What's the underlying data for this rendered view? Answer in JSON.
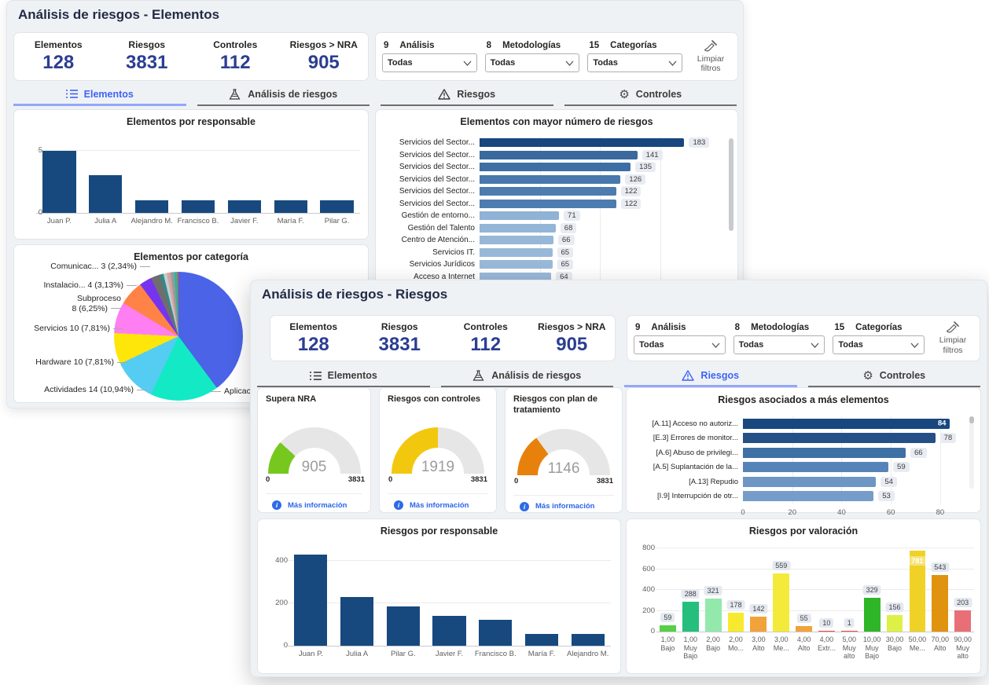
{
  "back": {
    "title": "Análisis de riesgos - Elementos",
    "kpis": [
      {
        "label": "Elementos",
        "value": "128"
      },
      {
        "label": "Riesgos",
        "value": "3831"
      },
      {
        "label": "Controles",
        "value": "112"
      },
      {
        "label": "Riesgos > NRA",
        "value": "905"
      }
    ],
    "filters": {
      "groups": [
        {
          "count": "9",
          "label": "Análisis",
          "value": "Todas"
        },
        {
          "count": "8",
          "label": "Metodologías",
          "value": "Todas"
        },
        {
          "count": "15",
          "label": "Categorías",
          "value": "Todas"
        }
      ],
      "clear_label": "Limpiar filtros"
    },
    "tabs": [
      {
        "label": "Elementos",
        "icon": "list",
        "active": true
      },
      {
        "label": "Análisis de riesgos",
        "icon": "flask",
        "active": false
      },
      {
        "label": "Riesgos",
        "icon": "warning",
        "active": false
      },
      {
        "label": "Controles",
        "icon": "gear",
        "active": false
      }
    ],
    "chart_responsable": {
      "type": "bar",
      "title": "Elementos por responsable",
      "categories": [
        "Juan P.",
        "Julia A",
        "Alejandro M.",
        "Francisco B.",
        "Javier F.",
        "María F.",
        "Pilar G."
      ],
      "values": [
        5,
        3,
        1,
        1,
        1,
        1,
        1
      ],
      "yticks": [
        0,
        5
      ],
      "scale_max": 6.25,
      "bar_color": "#17497F"
    },
    "chart_mayor": {
      "type": "bar-horizontal",
      "title": "Elementos con mayor número de riesgos",
      "scale_max": 215,
      "items": [
        {
          "label": "Servicios del Sector...",
          "value": 183,
          "color": "#17477E"
        },
        {
          "label": "Servicios del Sector...",
          "value": 141,
          "color": "#39699F"
        },
        {
          "label": "Servicios del Sector...",
          "value": 135,
          "color": "#3E6FA4"
        },
        {
          "label": "Servicios del Sector...",
          "value": 126,
          "color": "#4878AC"
        },
        {
          "label": "Servicios del Sector...",
          "value": 122,
          "color": "#4C7CB0"
        },
        {
          "label": "Servicios del Sector...",
          "value": 122,
          "color": "#4C7CB0"
        },
        {
          "label": "Gestión de entorno...",
          "value": 71,
          "color": "#8FB2D5"
        },
        {
          "label": "Gestión del Talento",
          "value": 68,
          "color": "#93B5D7"
        },
        {
          "label": "Centro de Atención...",
          "value": 66,
          "color": "#96B7D8"
        },
        {
          "label": "Servicios IT.",
          "value": 65,
          "color": "#98B8D9"
        },
        {
          "label": "Servicios Jurídicos",
          "value": 65,
          "color": "#98B8D9"
        },
        {
          "label": "Acceso a Internet",
          "value": 64,
          "color": "#99B9D9"
        }
      ]
    },
    "chart_categoria": {
      "type": "pie",
      "title": "Elementos por categoría",
      "slices": [
        {
          "pct": 39.84,
          "color": "#4A63E7"
        },
        {
          "pct": 17.19,
          "color": "#14E9C5"
        },
        {
          "pct": 10.94,
          "color": "#55CCF2"
        },
        {
          "pct": 7.81,
          "color": "#FFE60A"
        },
        {
          "pct": 7.81,
          "color": "#FF7EF2"
        },
        {
          "pct": 6.25,
          "color": "#FF8346"
        },
        {
          "pct": 3.13,
          "color": "#7633F0"
        },
        {
          "pct": 2.34,
          "color": "#6E6E6E"
        },
        {
          "pct": 0.9,
          "color": "#2E8B8B"
        },
        {
          "pct": 0.9,
          "color": "#C7CDCD"
        },
        {
          "pct": 0.9,
          "color": "#D4A3A3"
        },
        {
          "pct": 0.9,
          "color": "#9A9A9A"
        },
        {
          "pct": 0.8,
          "color": "#27B8A0"
        },
        {
          "pct": 0.4,
          "color": "#E8503C"
        },
        {
          "pct": 0.39,
          "color": "#E8C43C"
        }
      ],
      "callouts": [
        {
          "text": "Comunicac... 3 (2,34%)"
        },
        {
          "text": "Instalacio... 4 (3,13%)"
        },
        {
          "text": "Subproceso\n8 (6,25%)"
        },
        {
          "text": "Servicios 10 (7,81%)"
        },
        {
          "text": "Hardware 10 (7,81%)"
        },
        {
          "text": "Actividades 14 (10,94%)"
        },
        {
          "text": "Aplicac..."
        }
      ]
    }
  },
  "front": {
    "title": "Análisis de riesgos - Riesgos",
    "kpis": [
      {
        "label": "Elementos",
        "value": "128"
      },
      {
        "label": "Riesgos",
        "value": "3831"
      },
      {
        "label": "Controles",
        "value": "112"
      },
      {
        "label": "Riesgos > NRA",
        "value": "905"
      }
    ],
    "filters": {
      "groups": [
        {
          "count": "9",
          "label": "Análisis",
          "value": "Todas"
        },
        {
          "count": "8",
          "label": "Metodologías",
          "value": "Todas"
        },
        {
          "count": "15",
          "label": "Categorías",
          "value": "Todas"
        }
      ],
      "clear_label": "Limpiar filtros"
    },
    "tabs": [
      {
        "label": "Elementos",
        "icon": "list",
        "active": false
      },
      {
        "label": "Análisis de riesgos",
        "icon": "flask",
        "active": false
      },
      {
        "label": "Riesgos",
        "icon": "warning",
        "active": true
      },
      {
        "label": "Controles",
        "icon": "gear",
        "active": false
      }
    ],
    "gauges": [
      {
        "title": "Supera NRA",
        "value": "905",
        "min": "0",
        "max": "3831",
        "color": "#76C81F",
        "link": "Más información"
      },
      {
        "title": "Riesgos con controles",
        "value": "1919",
        "min": "0",
        "max": "3831",
        "color": "#F2C80F",
        "link": "Más información"
      },
      {
        "title": "Riesgos con plan de tratamiento",
        "value": "1146",
        "min": "0",
        "max": "3831",
        "color": "#E8810C",
        "link": "Más información"
      }
    ],
    "chart_asociados": {
      "type": "bar-horizontal",
      "title": "Riesgos asociados a más elementos",
      "scale_max": 88,
      "xticks": [
        0,
        20,
        40,
        60,
        80
      ],
      "items": [
        {
          "label": "[A.11] Acceso no autoriz...",
          "value": 84,
          "color": "#17477E",
          "inside": true
        },
        {
          "label": "[E.3] Errores de monitor...",
          "value": 78,
          "color": "#254F87"
        },
        {
          "label": "[A.6] Abuso de privilegi...",
          "value": 66,
          "color": "#3E70A5"
        },
        {
          "label": "[A.5] Suplantación de la...",
          "value": 59,
          "color": "#5784B8"
        },
        {
          "label": "[A.13] Repudio",
          "value": 54,
          "color": "#6D96C5"
        },
        {
          "label": "[I.9] Interrupción de otr...",
          "value": 53,
          "color": "#769CC9"
        }
      ]
    },
    "chart_responsable": {
      "type": "bar",
      "title": "Riesgos por responsable",
      "categories": [
        "Juan P.",
        "Julia A",
        "Pilar G.",
        "Javier F.",
        "Francisco B.",
        "María F.",
        "Alejandro M."
      ],
      "values": [
        430,
        228,
        185,
        140,
        122,
        57,
        55
      ],
      "yticks": [
        0,
        200,
        400
      ],
      "scale_max": 470,
      "bar_color": "#17497F"
    },
    "chart_valoracion": {
      "type": "bar",
      "title": "Riesgos por valoración",
      "yticks": [
        0,
        200,
        400,
        600,
        800
      ],
      "scale_max": 840,
      "bars": [
        {
          "label": "1,00 Bajo",
          "value": 59,
          "color": "#56D044"
        },
        {
          "label": "1,00 Muy Bajo",
          "value": 288,
          "color": "#26BE7C"
        },
        {
          "label": "2,00 Bajo",
          "value": 321,
          "color": "#93E9AC"
        },
        {
          "label": "2,00 Mo...",
          "value": 178,
          "color": "#F7EA2E"
        },
        {
          "label": "3,00 Alto",
          "value": 142,
          "color": "#F2A23A"
        },
        {
          "label": "3,00 Me...",
          "value": 559,
          "color": "#F4EA3A"
        },
        {
          "label": "4,00 Alto",
          "value": 55,
          "color": "#F2A23A"
        },
        {
          "label": "4,00 Extr...",
          "value": 10,
          "color": "#EF4A41"
        },
        {
          "label": "5,00 Muy alto",
          "value": 1,
          "color": "#EF4A41"
        },
        {
          "label": "10,00 Muy Bajo",
          "value": 329,
          "color": "#2FB528"
        },
        {
          "label": "30,00 Bajo",
          "value": 156,
          "color": "#DDF046"
        },
        {
          "label": "50,00 Me...",
          "value": 781,
          "color": "#F0D226",
          "inside": true
        },
        {
          "label": "70,00 Alto",
          "value": 543,
          "color": "#E0930F"
        },
        {
          "label": "90,00 Muy alto",
          "value": 203,
          "color": "#E86F76"
        }
      ]
    }
  }
}
